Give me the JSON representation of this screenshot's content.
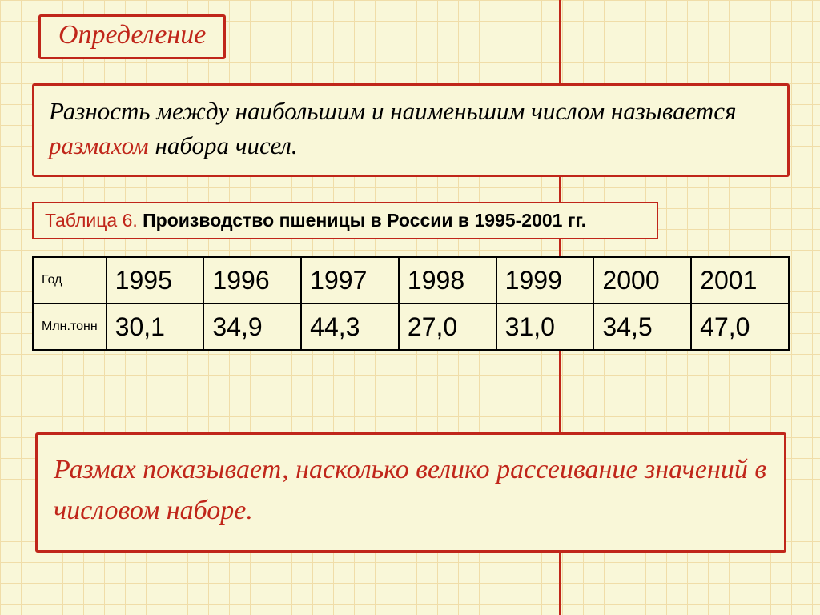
{
  "accent_color": "#c0261a",
  "bg_color": "#f9f7d8",
  "grid_color": "#f0dda8",
  "title": "Определение",
  "definition": {
    "pre": "Разность между наибольшим и наименьшим числом называется ",
    "highlight": "размахом",
    "post": " набора чисел."
  },
  "caption": {
    "label": "Таблица 6.",
    "text": " Производство пшеницы в России в 1995-2001 гг."
  },
  "table": {
    "row1_header": "Год",
    "row2_header": "Млн.тонн",
    "years": [
      "1995",
      "1996",
      "1997",
      "1998",
      "1999",
      "2000",
      "2001"
    ],
    "values": [
      "30,1",
      "34,9",
      "44,3",
      "27,0",
      "31,0",
      "34,5",
      "47,0"
    ]
  },
  "conclusion": "Размах показывает, насколько велико рассеивание значений в числовом наборе."
}
